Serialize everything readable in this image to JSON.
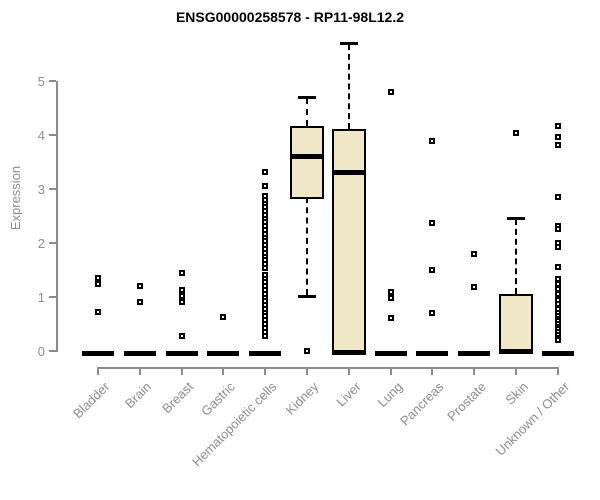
{
  "title": "ENSG00000258578 - RP11-98L12.2",
  "chart_data": {
    "type": "box",
    "title": "ENSG00000258578 - RP11-98L12.2",
    "xlabel": "",
    "ylabel": "Expression",
    "ylim": [
      0,
      5.9
    ],
    "yticks": [
      0,
      1,
      2,
      3,
      4,
      5
    ],
    "grid": false,
    "legend": "none",
    "box_fill_color": "#EFE7C6",
    "box_line_color": "#000000",
    "axis_color": "#8C8C8C",
    "tick_text_color": "#8C8C8C",
    "categories": [
      {
        "label": "Bladder",
        "stats": {
          "lo": 0,
          "q1": 0,
          "median": 0,
          "q3": 0,
          "hi": 0
        },
        "outliers": [
          1.35,
          1.25,
          0.73
        ]
      },
      {
        "label": "Brain",
        "stats": {
          "lo": 0,
          "q1": 0,
          "median": 0,
          "q3": 0,
          "hi": 0
        },
        "outliers": [
          1.2,
          0.9
        ]
      },
      {
        "label": "Breast",
        "stats": {
          "lo": 0,
          "q1": 0,
          "median": 0,
          "q3": 0,
          "hi": 0
        },
        "outliers": [
          1.45,
          1.13,
          1.01,
          0.9,
          0.27
        ]
      },
      {
        "label": "Gastric",
        "stats": {
          "lo": 0,
          "q1": 0,
          "median": 0,
          "q3": 0,
          "hi": 0
        },
        "outliers": [
          0.63
        ]
      },
      {
        "label": "Hematopoietic cells",
        "stats": {
          "lo": 0,
          "q1": 0,
          "median": 0,
          "q3": 0,
          "hi": 0
        },
        "outliers": [
          3.32,
          3.06,
          2.87,
          2.8,
          2.73,
          2.66,
          2.59,
          2.52,
          2.45,
          2.38,
          2.31,
          2.24,
          2.17,
          2.1,
          2.03,
          1.96,
          1.89,
          1.82,
          1.75,
          1.68,
          1.61,
          1.54,
          1.41,
          1.34,
          1.27,
          1.2,
          1.13,
          1.06,
          0.99,
          0.92,
          0.85,
          0.78,
          0.71,
          0.64,
          0.57,
          0.5,
          0.43,
          0.36,
          0.28
        ]
      },
      {
        "label": "Kidney",
        "stats": {
          "lo": 1.02,
          "q1": 2.85,
          "median": 3.6,
          "q3": 4.17,
          "hi": 4.7
        },
        "outliers": [
          0
        ]
      },
      {
        "label": "Liver",
        "stats": {
          "lo": 0,
          "q1": 0,
          "median": 3.3,
          "q3": 4.11,
          "hi": 5.7
        },
        "outliers": []
      },
      {
        "label": "Lung",
        "stats": {
          "lo": 0,
          "q1": 0,
          "median": 0,
          "q3": 0,
          "hi": 0
        },
        "outliers": [
          4.79,
          1.09,
          0.98,
          0.61
        ]
      },
      {
        "label": "Pancreas",
        "stats": {
          "lo": 0,
          "q1": 0,
          "median": 0,
          "q3": 0,
          "hi": 0
        },
        "outliers": [
          3.89,
          2.37,
          1.5,
          0.7
        ]
      },
      {
        "label": "Prostate",
        "stats": {
          "lo": 0,
          "q1": 0,
          "median": 0,
          "q3": 0,
          "hi": 0
        },
        "outliers": [
          1.8,
          1.19
        ]
      },
      {
        "label": "Skin",
        "stats": {
          "lo": 0,
          "q1": 0,
          "median": 0,
          "q3": 1.06,
          "hi": 2.46
        },
        "outliers": [
          4.04
        ]
      },
      {
        "label": "Unknown / Other",
        "stats": {
          "lo": 0,
          "q1": 0,
          "median": 0,
          "q3": 0,
          "hi": 0
        },
        "outliers": [
          4.17,
          3.97,
          3.81,
          2.85,
          2.32,
          2.26,
          2.0,
          1.93,
          1.56,
          1.33,
          1.24,
          1.15,
          1.05,
          0.95,
          0.87,
          0.78,
          0.7,
          0.65,
          0.6,
          0.55,
          0.5,
          0.45,
          0.4,
          0.35,
          0.3,
          0.25,
          0.2
        ]
      }
    ]
  }
}
